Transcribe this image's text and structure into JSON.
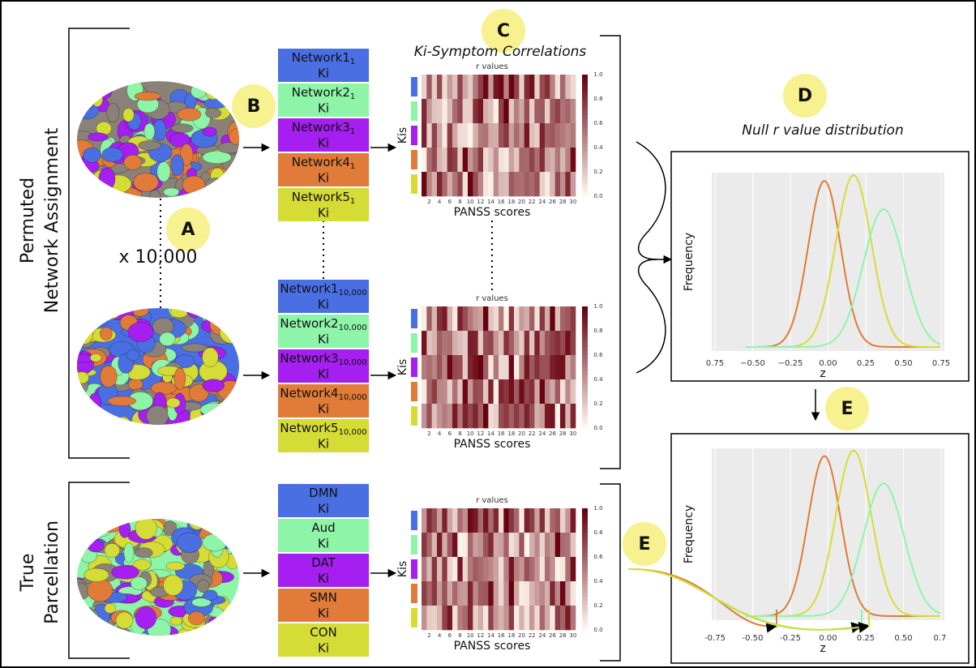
{
  "labels": {
    "a": "A",
    "b": "B",
    "c": "C",
    "d": "D",
    "e_top": "E",
    "e_left": "E"
  },
  "permuted": {
    "title": [
      "Permuted",
      "Network Assignment"
    ],
    "multiplier": "x 10,000"
  },
  "true_parcellation": {
    "title": [
      "True",
      "Parcellation"
    ]
  },
  "network_sets": [
    [
      {
        "name": "Network1",
        "sub": "1",
        "ki": "Ki"
      },
      {
        "name": "Network2",
        "sub": "1",
        "ki": "Ki"
      },
      {
        "name": "Network3",
        "sub": "1",
        "ki": "Ki"
      },
      {
        "name": "Network4",
        "sub": "1",
        "ki": "Ki"
      },
      {
        "name": "Network5",
        "sub": "1",
        "ki": "Ki"
      }
    ],
    [
      {
        "name": "Network1",
        "sub": "10,000",
        "ki": "Ki"
      },
      {
        "name": "Network2",
        "sub": "10,000",
        "ki": "Ki"
      },
      {
        "name": "Network3",
        "sub": "10,000",
        "ki": "Ki"
      },
      {
        "name": "Network4",
        "sub": "10,000",
        "ki": "Ki"
      },
      {
        "name": "Network5",
        "sub": "10,000",
        "ki": "Ki"
      }
    ],
    [
      {
        "name": "DMN",
        "ki": "Ki"
      },
      {
        "name": "Aud",
        "ki": "Ki"
      },
      {
        "name": "DAT",
        "ki": "Ki"
      },
      {
        "name": "SMN",
        "ki": "Ki"
      },
      {
        "name": "CON",
        "ki": "Ki"
      }
    ]
  ],
  "heatmaps": {
    "title": "Ki-Symptom Correlations",
    "panels": [
      {
        "top": "r values",
        "y_label": "Kis",
        "x_label": "PANSS scores"
      },
      {
        "top": "r values",
        "y_label": "Kis",
        "x_label": "PANSS scores"
      },
      {
        "top": "r values",
        "y_label": "Kis",
        "x_label": "PANSS scores"
      }
    ],
    "x_ticks": [
      "2",
      "4",
      "6",
      "8",
      "10",
      "12",
      "14",
      "16",
      "18",
      "20",
      "22",
      "24",
      "26",
      "28",
      "30"
    ],
    "colorbar_ticks": [
      "0.0",
      "0.2",
      "0.4",
      "0.6",
      "0.8",
      "1.0"
    ]
  },
  "null_panel": {
    "title": "Null r value distribution",
    "y_label": "Frequency",
    "x_label": "z",
    "x_ticks": [
      "0.75",
      "−0.50",
      "−0.25",
      "0.00",
      "0.25",
      "0.50",
      "0.75"
    ]
  },
  "true_panel": {
    "y_label": "Frequency",
    "x_label": "z",
    "x_ticks": [
      "-0.75",
      "-0.50",
      "-0.25",
      "0.00",
      "0.25",
      "0.50",
      "0.7 "
    ]
  }
}
